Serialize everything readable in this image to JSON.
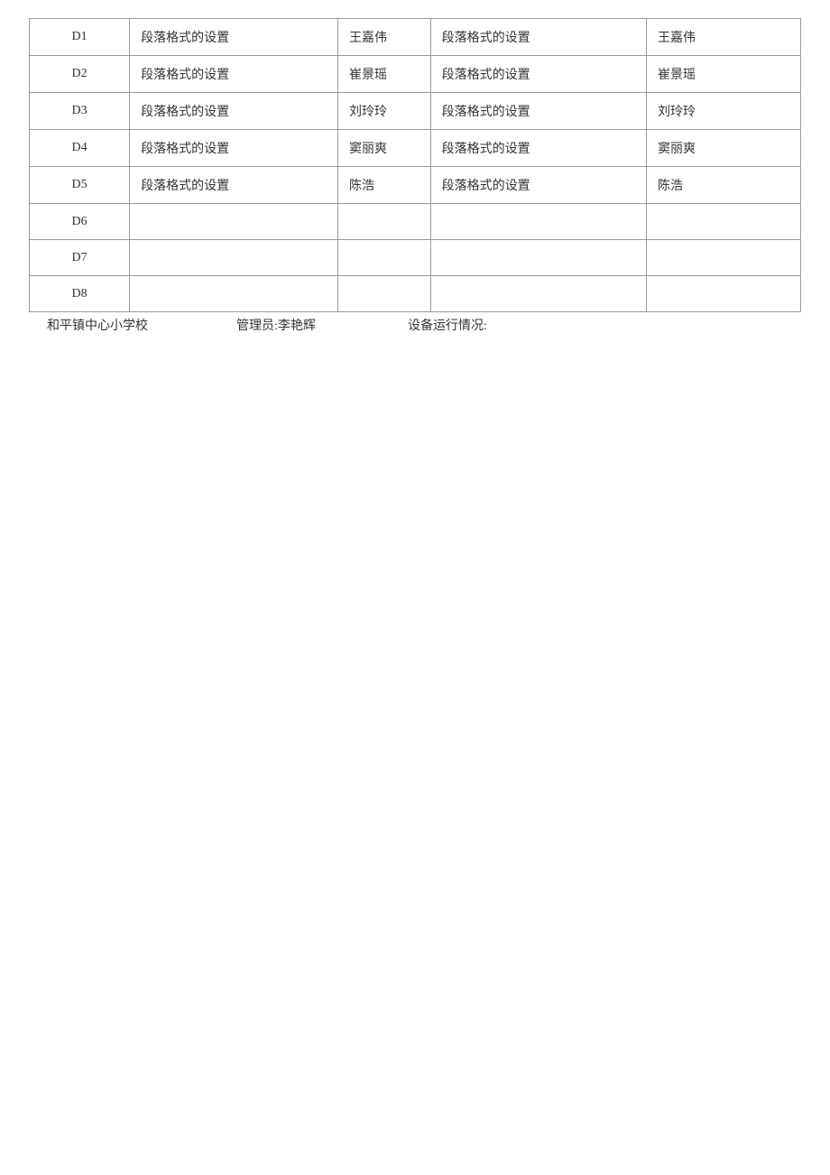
{
  "table": {
    "border_color": "#999999",
    "text_color": "#333333",
    "font_size": 14,
    "columns": [
      {
        "key": "id",
        "width_pct": 13,
        "align": "center"
      },
      {
        "key": "task1",
        "width_pct": 27,
        "align": "left"
      },
      {
        "key": "name1",
        "width_pct": 12,
        "align": "left"
      },
      {
        "key": "task2",
        "width_pct": 28,
        "align": "left"
      },
      {
        "key": "name2",
        "width_pct": 20,
        "align": "left"
      }
    ],
    "rows": [
      {
        "id": "D1",
        "task1": "段落格式的设置",
        "name1": "王嘉伟",
        "task2": "段落格式的设置",
        "name2": "王嘉伟"
      },
      {
        "id": "D2",
        "task1": "段落格式的设置",
        "name1": "崔景瑶",
        "task2": "段落格式的设置",
        "name2": "崔景瑶"
      },
      {
        "id": "D3",
        "task1": "段落格式的设置",
        "name1": "刘玲玲",
        "task2": "段落格式的设置",
        "name2": "刘玲玲"
      },
      {
        "id": "D4",
        "task1": "段落格式的设置",
        "name1": "窦丽爽",
        "task2": "段落格式的设置",
        "name2": "窦丽爽"
      },
      {
        "id": "D5",
        "task1": "段落格式的设置",
        "name1": "陈浩",
        "task2": "段落格式的设置",
        "name2": "陈浩"
      },
      {
        "id": "D6",
        "task1": "",
        "name1": "",
        "task2": "",
        "name2": ""
      },
      {
        "id": "D7",
        "task1": "",
        "name1": "",
        "task2": "",
        "name2": ""
      },
      {
        "id": "D8",
        "task1": "",
        "name1": "",
        "task2": "",
        "name2": ""
      }
    ]
  },
  "footer": {
    "school": "和平镇中心小学校",
    "admin_label": "管理员:李艳辉",
    "status_label": "设备运行情况:"
  }
}
